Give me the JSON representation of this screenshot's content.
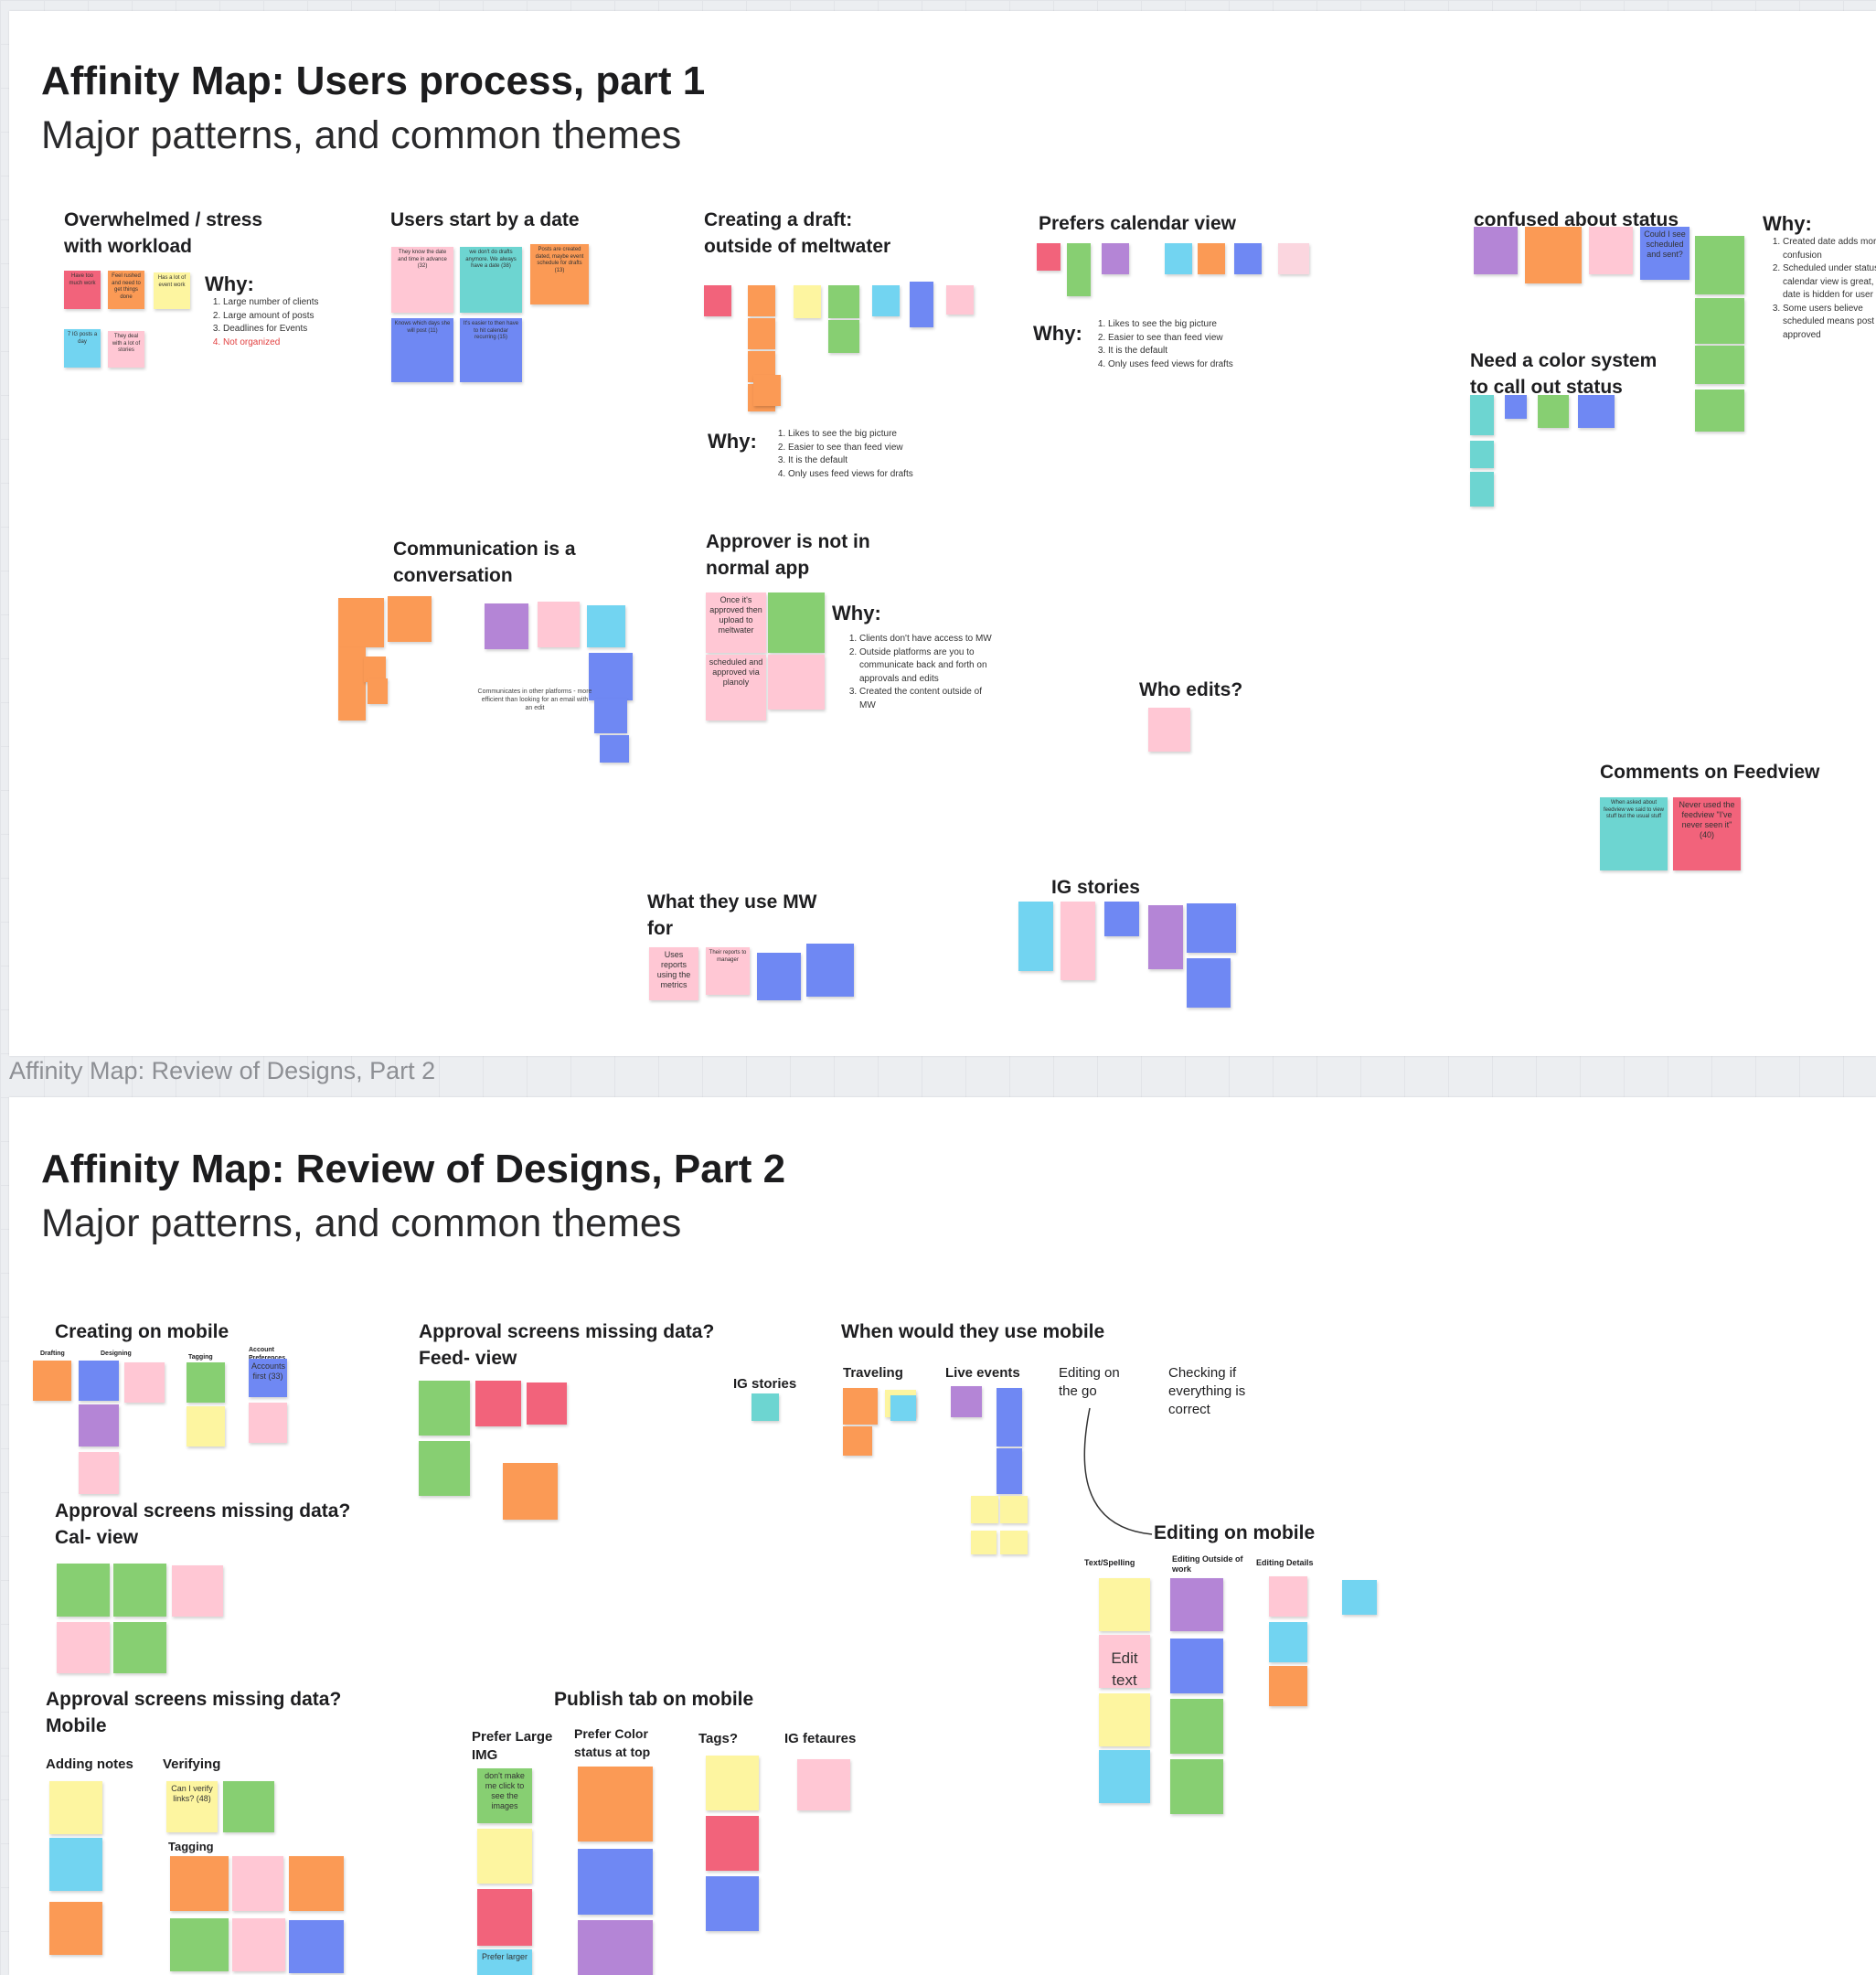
{
  "colors": {
    "red": "#f2637b",
    "orange": "#fb9a55",
    "yellow": "#fdf5a0",
    "green": "#87cf72",
    "teal": "#6dd5d1",
    "blue": "#6f88f3",
    "purple": "#b485d6",
    "pink": "#ffc7d4",
    "cyan": "#72d4f1",
    "lightpink": "#fbd6df"
  },
  "frame2_label": "Affinity Map: Review of Designs, Part 2",
  "board1": {
    "title": "Affinity Map: Users process, part 1",
    "subtitle": "Major patterns, and common themes",
    "overwhelmed": {
      "title": "Overwhelmed / stress with workload",
      "why": "Why:",
      "reasons": [
        "Large number of clients",
        "Large amount of posts",
        "Deadlines for Events",
        "Not organized"
      ],
      "notes": [
        "Have too much work",
        "Feel rushed and need to get things done",
        "Has a lot of event work",
        "7 IG posts a day",
        "They deal with a lot of stories"
      ]
    },
    "start_date": {
      "title": "Users start by a date",
      "notes": [
        "They know the date and time in advance (32)",
        "we don't do drafts anymore. We always have a date (38)",
        "Posts are created dated, maybe event schedule for drafts (13)",
        "Knows which days she will post (11)",
        "It's easier to then have to hit calendar recurring (15)"
      ]
    },
    "creating_draft": {
      "title": "Creating a draft: outside of meltwater",
      "why": "Why:",
      "reasons": [
        "Likes to see the big picture",
        "Easier to see than feed view",
        "It is the default",
        "Only uses feed views for drafts"
      ]
    },
    "calendar": {
      "title": "Prefers calendar view",
      "why": "Why:",
      "reasons": [
        "Likes to see the big picture",
        "Easier to see than feed view",
        "It is the default",
        "Only uses feed views for drafts"
      ]
    },
    "status": {
      "title": "confused about status",
      "why": "Why:",
      "reasons": [
        "Created date adds more confusion",
        "Scheduled under status in calendar view is great, but date is hidden for user",
        "Some users believe scheduled means post is approved"
      ],
      "notes": [
        "Could I see scheduled and sent?"
      ]
    },
    "color_system": {
      "title": "Need a color system to call out status"
    },
    "communication": {
      "title": "Communication is a conversation",
      "caption": "Communicates in other platforms - more efficient than looking for an email with an edit"
    },
    "approver": {
      "title": "Approver is not in normal app",
      "why": "Why:",
      "reasons": [
        "Clients don't have access to MW",
        "Outside platforms are you to communicate back and forth on approvals and edits",
        "Created the content outside of MW"
      ],
      "notes": [
        "Once it's approved then upload to meltwater",
        "scheduled and approved via planoly"
      ]
    },
    "who_edits": {
      "title": "Who edits?"
    },
    "feedview": {
      "title": "Comments on Feedview",
      "notes": [
        "When asked about feedview we said to view stuff but the usual stuff",
        "Never used the feedview \"I've never seen it\" (40)"
      ]
    },
    "what_use": {
      "title": "What they use MW for",
      "notes": [
        "Uses reports using the metrics",
        "Their reports to manager"
      ]
    },
    "ig_stories": {
      "title": "IG stories"
    }
  },
  "board2": {
    "title": "Affinity Map: Review of Designs, Part 2",
    "subtitle": "Major patterns, and common themes",
    "creating_mobile": {
      "title": "Creating on mobile",
      "subs": [
        "Drafting",
        "Designing",
        "Tagging",
        "Account Preferences"
      ],
      "notes": [
        "Accounts first (33)"
      ]
    },
    "approval_feed": {
      "title": "Approval screens missing data? Feed- view"
    },
    "ig_stories": {
      "title": "IG stories"
    },
    "when_mobile": {
      "title": "When would they use mobile",
      "subs": [
        "Traveling",
        "Live events",
        "Editing on the go",
        "Checking if everything is correct"
      ]
    },
    "approval_cal": {
      "title": "Approval screens missing data? Cal- view"
    },
    "editing_mobile": {
      "title": "Editing on mobile",
      "subs": [
        "Text/Spelling",
        "Editing Outside of work",
        "Editing Details"
      ],
      "notes": [
        "Edit text"
      ]
    },
    "approval_mobile": {
      "title": "Approval screens missing data? Mobile",
      "subs": [
        "Adding notes",
        "Verifying",
        "Tagging"
      ],
      "notes": [
        "Can I verify links? (48)"
      ]
    },
    "publish": {
      "title": "Publish tab on mobile",
      "subs": [
        "Prefer Large IMG",
        "Prefer Color status at top",
        "Tags?",
        "IG fetaures"
      ],
      "notes": [
        "don't make me click to see the images",
        "Prefer larger"
      ]
    }
  }
}
